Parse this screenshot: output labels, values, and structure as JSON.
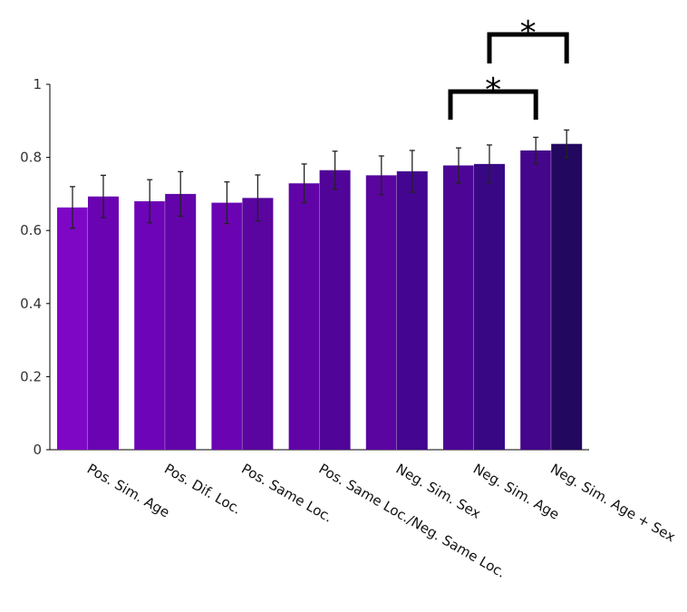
{
  "chart_data": {
    "type": "bar",
    "title": "",
    "xlabel": "",
    "ylabel": "",
    "ylim": [
      0,
      1
    ],
    "yticks": [
      "0",
      "0.2",
      "0.4",
      "0.6",
      "0.8",
      "1"
    ],
    "grid": false,
    "categories": [
      "Pos. Sim. Age",
      "Pos. Dif. Loc.",
      "Pos. Same Loc.",
      "Pos. Same Loc./Neg. Same Loc.",
      "Neg. Sim. Sex",
      "Neg. Sim. Age",
      "Neg. Sim. Age + Sex"
    ],
    "series": [
      {
        "values": [
          0.663,
          0.68,
          0.676,
          0.729,
          0.751,
          0.778,
          0.819
        ],
        "errors": [
          0.057,
          0.059,
          0.057,
          0.053,
          0.053,
          0.048,
          0.036
        ],
        "colors": [
          "#7e07c6",
          "#6d04b8",
          "#6a04b2",
          "#6004a8",
          "#5a05a0",
          "#4d0596",
          "#44068a"
        ]
      },
      {
        "values": [
          0.693,
          0.7,
          0.689,
          0.765,
          0.762,
          0.782,
          0.837
        ],
        "errors": [
          0.058,
          0.061,
          0.063,
          0.052,
          0.057,
          0.052,
          0.038
        ],
        "colors": [
          "#6a04b2",
          "#6204aa",
          "#5a05a0",
          "#500598",
          "#440690",
          "#380884",
          "#22085e"
        ]
      }
    ],
    "annotations": [
      {
        "text": "*",
        "from": {
          "category": 5,
          "series": 1
        },
        "to": {
          "category": 6,
          "series": 1
        }
      },
      {
        "text": "*",
        "from": {
          "category": 5,
          "series": 0
        },
        "to": {
          "category": 6,
          "series": 0
        }
      }
    ]
  }
}
